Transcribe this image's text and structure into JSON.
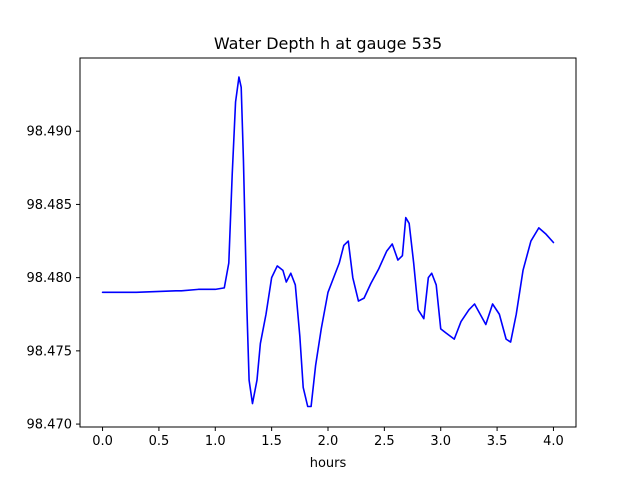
{
  "chart_data": {
    "type": "line",
    "title": "Water Depth h at gauge 535",
    "xlabel": "hours",
    "ylabel": "",
    "xlim": [
      -0.2,
      4.2
    ],
    "ylim": [
      98.4698,
      98.495
    ],
    "xticks": [
      0.0,
      0.5,
      1.0,
      1.5,
      2.0,
      2.5,
      3.0,
      3.5,
      4.0
    ],
    "xtick_labels": [
      "0.0",
      "0.5",
      "1.0",
      "1.5",
      "2.0",
      "2.5",
      "3.0",
      "3.5",
      "4.0"
    ],
    "yticks": [
      98.47,
      98.475,
      98.48,
      98.485,
      98.49
    ],
    "ytick_labels": [
      "98.470",
      "98.475",
      "98.480",
      "98.485",
      "98.490"
    ],
    "grid": false,
    "series": [
      {
        "color": "#0000ff",
        "points": [
          [
            0.0,
            98.479
          ],
          [
            0.3,
            98.479
          ],
          [
            0.65,
            98.4791
          ],
          [
            0.7,
            98.4791
          ],
          [
            0.85,
            98.4792
          ],
          [
            1.0,
            98.4792
          ],
          [
            1.08,
            98.4793
          ],
          [
            1.12,
            98.481
          ],
          [
            1.15,
            98.487
          ],
          [
            1.18,
            98.492
          ],
          [
            1.21,
            98.4937
          ],
          [
            1.23,
            98.493
          ],
          [
            1.25,
            98.488
          ],
          [
            1.28,
            98.478
          ],
          [
            1.3,
            98.473
          ],
          [
            1.33,
            98.4714
          ],
          [
            1.37,
            98.473
          ],
          [
            1.4,
            98.4755
          ],
          [
            1.45,
            98.4775
          ],
          [
            1.5,
            98.48
          ],
          [
            1.55,
            98.4808
          ],
          [
            1.6,
            98.4805
          ],
          [
            1.63,
            98.4797
          ],
          [
            1.67,
            98.4803
          ],
          [
            1.71,
            98.4795
          ],
          [
            1.75,
            98.476
          ],
          [
            1.78,
            98.4725
          ],
          [
            1.82,
            98.4712
          ],
          [
            1.85,
            98.4712
          ],
          [
            1.89,
            98.474
          ],
          [
            1.94,
            98.4765
          ],
          [
            2.0,
            98.479
          ],
          [
            2.05,
            98.48
          ],
          [
            2.1,
            98.481
          ],
          [
            2.14,
            98.4822
          ],
          [
            2.18,
            98.4825
          ],
          [
            2.22,
            98.48
          ],
          [
            2.27,
            98.4784
          ],
          [
            2.32,
            98.4786
          ],
          [
            2.38,
            98.4796
          ],
          [
            2.45,
            98.4806
          ],
          [
            2.52,
            98.4818
          ],
          [
            2.57,
            98.4823
          ],
          [
            2.62,
            98.4812
          ],
          [
            2.66,
            98.4815
          ],
          [
            2.69,
            98.4841
          ],
          [
            2.72,
            98.4837
          ],
          [
            2.76,
            98.481
          ],
          [
            2.8,
            98.4778
          ],
          [
            2.85,
            98.4772
          ],
          [
            2.89,
            98.48
          ],
          [
            2.92,
            98.4803
          ],
          [
            2.96,
            98.4795
          ],
          [
            3.0,
            98.4765
          ],
          [
            3.05,
            98.4762
          ],
          [
            3.12,
            98.4758
          ],
          [
            3.18,
            98.477
          ],
          [
            3.25,
            98.4778
          ],
          [
            3.3,
            98.4782
          ],
          [
            3.35,
            98.4775
          ],
          [
            3.4,
            98.4768
          ],
          [
            3.46,
            98.4782
          ],
          [
            3.52,
            98.4775
          ],
          [
            3.58,
            98.4758
          ],
          [
            3.62,
            98.4756
          ],
          [
            3.67,
            98.4775
          ],
          [
            3.73,
            98.4805
          ],
          [
            3.8,
            98.4825
          ],
          [
            3.87,
            98.4834
          ],
          [
            3.93,
            98.483
          ],
          [
            4.0,
            98.4824
          ]
        ]
      }
    ]
  }
}
